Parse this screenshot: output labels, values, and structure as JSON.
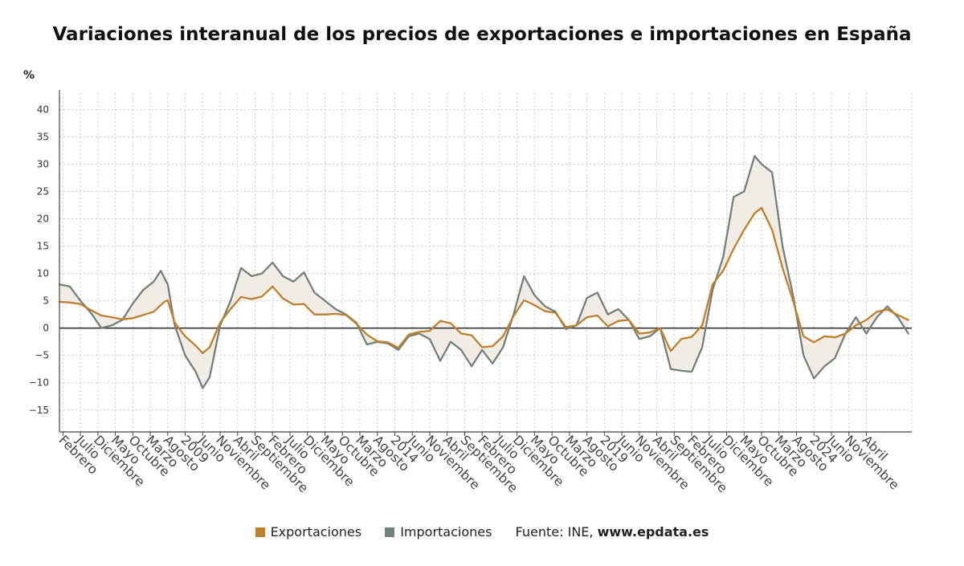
{
  "title": "Variaciones interanual de los precios de exportaciones e importaciones en España",
  "unit": "%",
  "legend": {
    "exports_label": "Exportaciones",
    "imports_label": "Importaciones",
    "source_prefix": "Fuente: INE,",
    "source_domain": "www.epdata.es"
  },
  "colors": {
    "exports": "#c07f2c",
    "imports": "#738279",
    "fill": "#f1ede6",
    "grid": "#c8c8c8",
    "axis": "#444444"
  },
  "chart_data": {
    "type": "line",
    "ylim": [
      -19,
      43
    ],
    "y_ticks": [
      40,
      35,
      30,
      25,
      20,
      15,
      10,
      5,
      0,
      -5,
      -10,
      -15
    ],
    "grid": true,
    "legend_position": "bottom",
    "x_range": [
      "2005-01",
      "2025-05"
    ],
    "x_ticks": [
      {
        "label": "Febrero",
        "date": "2005-02"
      },
      {
        "label": "Julio",
        "date": "2005-07"
      },
      {
        "label": "Diciembre",
        "date": "2005-12"
      },
      {
        "label": "Mayo",
        "date": "2006-05"
      },
      {
        "label": "Octubre",
        "date": "2006-10"
      },
      {
        "label": "Marzo",
        "date": "2007-03"
      },
      {
        "label": "Agosto",
        "date": "2007-08"
      },
      {
        "label": "2009",
        "date": "2008-01"
      },
      {
        "label": "Junio",
        "date": "2008-06"
      },
      {
        "label": "Noviembre",
        "date": "2008-11"
      },
      {
        "label": "Abril",
        "date": "2009-04"
      },
      {
        "label": "Septiembre",
        "date": "2009-09"
      },
      {
        "label": "Febrero",
        "date": "2010-02"
      },
      {
        "label": "Julio",
        "date": "2010-07"
      },
      {
        "label": "Diciembre",
        "date": "2010-12"
      },
      {
        "label": "Mayo",
        "date": "2011-05"
      },
      {
        "label": "Octubre",
        "date": "2011-10"
      },
      {
        "label": "Marzo",
        "date": "2012-03"
      },
      {
        "label": "Agosto",
        "date": "2012-08"
      },
      {
        "label": "2014",
        "date": "2013-01"
      },
      {
        "label": "Junio",
        "date": "2013-06"
      },
      {
        "label": "Noviembre",
        "date": "2013-11"
      },
      {
        "label": "Abril",
        "date": "2014-04"
      },
      {
        "label": "Septiembre",
        "date": "2014-09"
      },
      {
        "label": "Febrero",
        "date": "2015-02"
      },
      {
        "label": "Julio",
        "date": "2015-07"
      },
      {
        "label": "Diciembre",
        "date": "2015-12"
      },
      {
        "label": "Mayo",
        "date": "2016-05"
      },
      {
        "label": "Octubre",
        "date": "2016-10"
      },
      {
        "label": "Marzo",
        "date": "2017-03"
      },
      {
        "label": "Agosto",
        "date": "2017-08"
      },
      {
        "label": "2019",
        "date": "2018-01"
      },
      {
        "label": "Junio",
        "date": "2018-06"
      },
      {
        "label": "Noviembre",
        "date": "2018-11"
      },
      {
        "label": "Abril",
        "date": "2019-04"
      },
      {
        "label": "Septiembre",
        "date": "2019-09"
      },
      {
        "label": "Febrero",
        "date": "2020-02"
      },
      {
        "label": "Julio",
        "date": "2020-07"
      },
      {
        "label": "Diciembre",
        "date": "2020-12"
      },
      {
        "label": "Mayo",
        "date": "2021-05"
      },
      {
        "label": "Octubre",
        "date": "2021-10"
      },
      {
        "label": "Marzo",
        "date": "2022-03"
      },
      {
        "label": "Agosto",
        "date": "2022-08"
      },
      {
        "label": "2024",
        "date": "2023-01"
      },
      {
        "label": "Junio",
        "date": "2023-06"
      },
      {
        "label": "Noviembre",
        "date": "2023-11"
      },
      {
        "label": "Abril",
        "date": "2024-04"
      }
    ],
    "series": [
      {
        "name": "Exportaciones",
        "color": "#c07f2c",
        "points": [
          [
            "2005-01",
            4.8
          ],
          [
            "2005-04",
            4.7
          ],
          [
            "2005-07",
            4.4
          ],
          [
            "2005-10",
            3.3
          ],
          [
            "2006-01",
            2.3
          ],
          [
            "2006-04",
            2.0
          ],
          [
            "2006-07",
            1.6
          ],
          [
            "2006-10",
            1.8
          ],
          [
            "2007-01",
            2.4
          ],
          [
            "2007-04",
            3.0
          ],
          [
            "2007-07",
            4.8
          ],
          [
            "2007-08",
            5.1
          ],
          [
            "2007-10",
            1.0
          ],
          [
            "2008-01",
            -1.5
          ],
          [
            "2008-04",
            -3.2
          ],
          [
            "2008-06",
            -4.6
          ],
          [
            "2008-08",
            -3.5
          ],
          [
            "2008-11",
            1.0
          ],
          [
            "2009-02",
            3.5
          ],
          [
            "2009-05",
            5.7
          ],
          [
            "2009-08",
            5.3
          ],
          [
            "2009-11",
            5.8
          ],
          [
            "2010-02",
            7.6
          ],
          [
            "2010-05",
            5.4
          ],
          [
            "2010-08",
            4.3
          ],
          [
            "2010-11",
            4.4
          ],
          [
            "2011-02",
            2.5
          ],
          [
            "2011-05",
            2.5
          ],
          [
            "2011-08",
            2.6
          ],
          [
            "2011-11",
            2.4
          ],
          [
            "2012-02",
            0.8
          ],
          [
            "2012-05",
            -1.2
          ],
          [
            "2012-08",
            -2.4
          ],
          [
            "2012-11",
            -2.6
          ],
          [
            "2013-02",
            -3.6
          ],
          [
            "2013-05",
            -1.2
          ],
          [
            "2013-08",
            -0.7
          ],
          [
            "2013-11",
            -0.5
          ],
          [
            "2014-02",
            1.3
          ],
          [
            "2014-05",
            0.9
          ],
          [
            "2014-08",
            -1.0
          ],
          [
            "2014-11",
            -1.3
          ],
          [
            "2015-02",
            -3.5
          ],
          [
            "2015-05",
            -3.3
          ],
          [
            "2015-08",
            -1.5
          ],
          [
            "2015-11",
            2.2
          ],
          [
            "2016-02",
            5.1
          ],
          [
            "2016-05",
            4.2
          ],
          [
            "2016-08",
            3.1
          ],
          [
            "2016-11",
            2.8
          ],
          [
            "2017-02",
            0.2
          ],
          [
            "2017-05",
            0.5
          ],
          [
            "2017-08",
            2.0
          ],
          [
            "2017-11",
            2.3
          ],
          [
            "2018-02",
            0.3
          ],
          [
            "2018-05",
            1.3
          ],
          [
            "2018-08",
            1.5
          ],
          [
            "2018-11",
            -1.0
          ],
          [
            "2019-02",
            -0.8
          ],
          [
            "2019-05",
            0.0
          ],
          [
            "2019-08",
            -4.2
          ],
          [
            "2019-11",
            -2.0
          ],
          [
            "2020-02",
            -1.6
          ],
          [
            "2020-05",
            0.5
          ],
          [
            "2020-08",
            8.0
          ],
          [
            "2020-11",
            10.5
          ],
          [
            "2021-02",
            14.5
          ],
          [
            "2021-05",
            18.0
          ],
          [
            "2021-08",
            21.0
          ],
          [
            "2021-10",
            22.0
          ],
          [
            "2022-01",
            18.0
          ],
          [
            "2022-04",
            11.0
          ],
          [
            "2022-07",
            5.0
          ],
          [
            "2022-10",
            -1.5
          ],
          [
            "2023-01",
            -2.6
          ],
          [
            "2023-04",
            -1.5
          ],
          [
            "2023-07",
            -1.7
          ],
          [
            "2023-10",
            -1.0
          ],
          [
            "2024-01",
            0.5
          ],
          [
            "2024-04",
            1.5
          ],
          [
            "2024-07",
            3.0
          ],
          [
            "2024-10",
            3.4
          ],
          [
            "2025-01",
            2.4
          ],
          [
            "2025-04",
            1.5
          ]
        ]
      },
      {
        "name": "Importaciones",
        "color": "#738279",
        "points": [
          [
            "2005-01",
            8.0
          ],
          [
            "2005-04",
            7.6
          ],
          [
            "2005-07",
            5.0
          ],
          [
            "2005-10",
            2.8
          ],
          [
            "2006-01",
            0.0
          ],
          [
            "2006-04",
            0.5
          ],
          [
            "2006-07",
            1.5
          ],
          [
            "2006-10",
            4.5
          ],
          [
            "2007-01",
            7.0
          ],
          [
            "2007-04",
            8.5
          ],
          [
            "2007-06",
            10.5
          ],
          [
            "2007-08",
            8.0
          ],
          [
            "2007-10",
            0.5
          ],
          [
            "2008-01",
            -5.0
          ],
          [
            "2008-04",
            -8.0
          ],
          [
            "2008-06",
            -11.0
          ],
          [
            "2008-08",
            -9.0
          ],
          [
            "2008-11",
            0.5
          ],
          [
            "2009-02",
            5.0
          ],
          [
            "2009-05",
            11.0
          ],
          [
            "2009-08",
            9.5
          ],
          [
            "2009-11",
            10.0
          ],
          [
            "2010-02",
            12.0
          ],
          [
            "2010-05",
            9.5
          ],
          [
            "2010-08",
            8.5
          ],
          [
            "2010-11",
            10.2
          ],
          [
            "2011-02",
            6.5
          ],
          [
            "2011-05",
            5.0
          ],
          [
            "2011-08",
            3.5
          ],
          [
            "2011-11",
            2.5
          ],
          [
            "2012-02",
            1.0
          ],
          [
            "2012-05",
            -3.0
          ],
          [
            "2012-08",
            -2.5
          ],
          [
            "2012-11",
            -2.8
          ],
          [
            "2013-02",
            -4.0
          ],
          [
            "2013-05",
            -1.5
          ],
          [
            "2013-08",
            -1.0
          ],
          [
            "2013-11",
            -2.0
          ],
          [
            "2014-02",
            -6.0
          ],
          [
            "2014-05",
            -2.5
          ],
          [
            "2014-08",
            -4.0
          ],
          [
            "2014-11",
            -7.0
          ],
          [
            "2015-02",
            -4.0
          ],
          [
            "2015-05",
            -6.5
          ],
          [
            "2015-08",
            -3.5
          ],
          [
            "2015-11",
            2.5
          ],
          [
            "2016-02",
            9.5
          ],
          [
            "2016-05",
            6.0
          ],
          [
            "2016-08",
            4.0
          ],
          [
            "2016-11",
            3.0
          ],
          [
            "2017-02",
            -0.2
          ],
          [
            "2017-05",
            0.5
          ],
          [
            "2017-08",
            5.5
          ],
          [
            "2017-11",
            6.5
          ],
          [
            "2018-02",
            2.5
          ],
          [
            "2018-05",
            3.5
          ],
          [
            "2018-08",
            1.5
          ],
          [
            "2018-11",
            -2.0
          ],
          [
            "2019-02",
            -1.5
          ],
          [
            "2019-05",
            0.0
          ],
          [
            "2019-08",
            -7.5
          ],
          [
            "2019-11",
            -7.8
          ],
          [
            "2020-02",
            -8.0
          ],
          [
            "2020-05",
            -3.5
          ],
          [
            "2020-08",
            7.0
          ],
          [
            "2020-11",
            13.0
          ],
          [
            "2021-02",
            24.0
          ],
          [
            "2021-05",
            25.0
          ],
          [
            "2021-08",
            31.5
          ],
          [
            "2021-10",
            30.0
          ],
          [
            "2022-01",
            28.5
          ],
          [
            "2022-04",
            15.0
          ],
          [
            "2022-07",
            6.0
          ],
          [
            "2022-10",
            -5.0
          ],
          [
            "2023-01",
            -9.2
          ],
          [
            "2023-04",
            -7.0
          ],
          [
            "2023-07",
            -5.5
          ],
          [
            "2023-10",
            -1.0
          ],
          [
            "2024-01",
            2.0
          ],
          [
            "2024-04",
            -1.0
          ],
          [
            "2024-07",
            2.0
          ],
          [
            "2024-10",
            4.0
          ],
          [
            "2025-01",
            2.0
          ],
          [
            "2025-04",
            -1.0
          ]
        ]
      }
    ]
  }
}
